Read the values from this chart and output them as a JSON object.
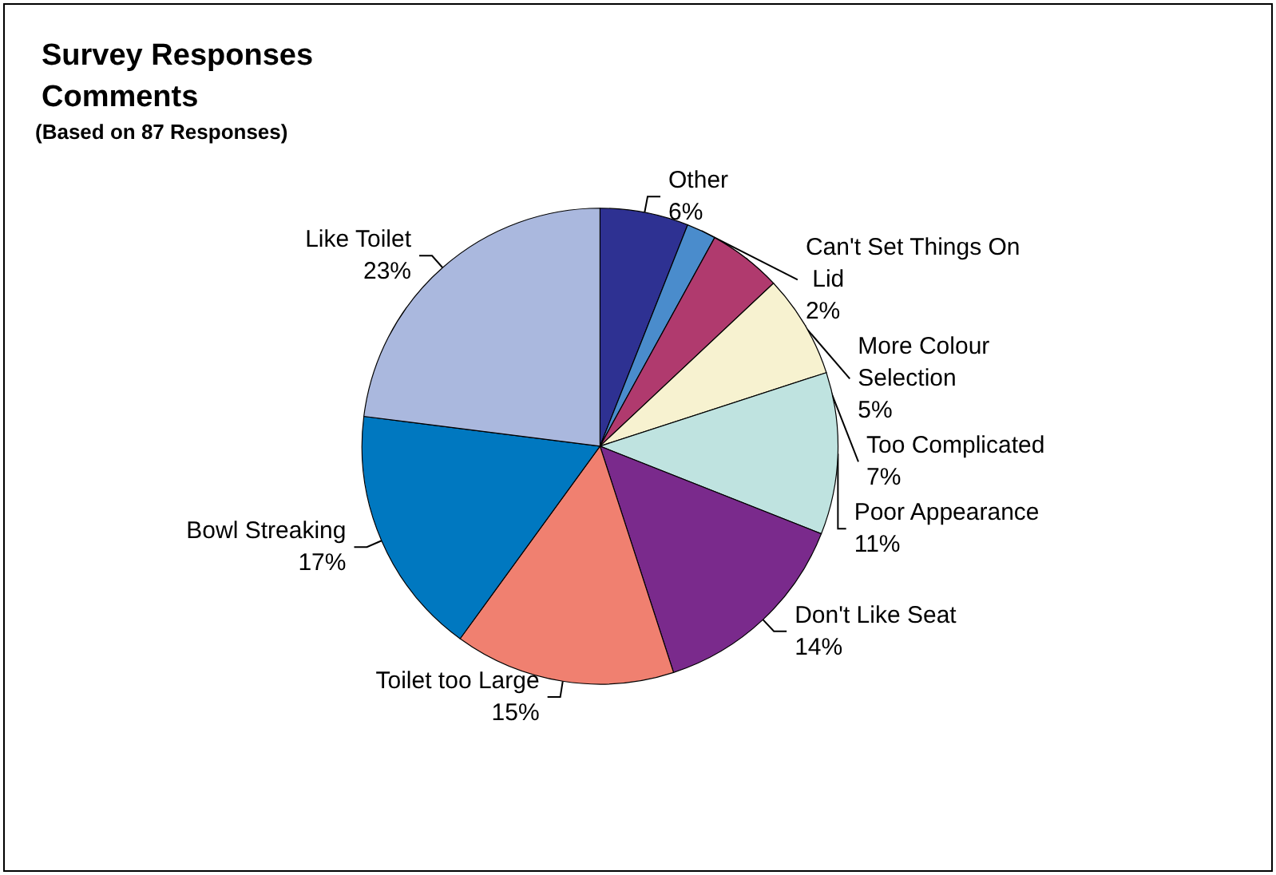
{
  "chart_data": {
    "type": "pie",
    "title": "Survey Responses Comments",
    "subtitle": "(Based on 87 Responses)",
    "categories": [
      "Other",
      "Can't Set Things On Lid",
      "More Colour Selection",
      "Too Complicated",
      "Poor Appearance",
      "Don't Like Seat",
      "Toilet too Large",
      "Bowl Streaking",
      "Like Toilet"
    ],
    "values": [
      6,
      2,
      5,
      7,
      11,
      14,
      15,
      17,
      23
    ],
    "value_labels": [
      "6%",
      "2%",
      "5%",
      "7%",
      "11%",
      "14%",
      "15%",
      "17%",
      "23%"
    ],
    "colors": [
      "#2e3192",
      "#4a8ccc",
      "#b03a6e",
      "#f7f2d0",
      "#bfe3e0",
      "#7a2a8c",
      "#f08070",
      "#0078c0",
      "#aab8de"
    ],
    "legend": false
  }
}
